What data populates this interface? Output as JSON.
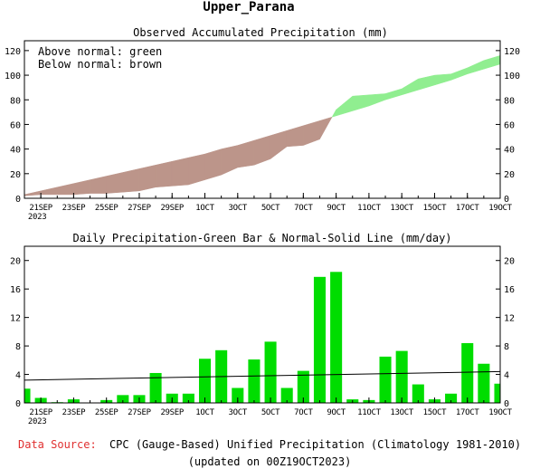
{
  "title": "Upper_Parana",
  "footer": {
    "source_label": "Data Source:",
    "source_text": "CPC (Gauge-Based) Unified Precipitation (Climatology 1981-2010)",
    "updated": "(updated on 00Z19OCT2023)"
  },
  "colors": {
    "above_normal": "#90ee90",
    "below_normal": "#bc958a",
    "bar": "#00dd00",
    "axis": "#000000",
    "source_label": "#e03030"
  },
  "chart_data": [
    {
      "type": "area",
      "title": "Observed Accumulated Precipitation (mm)",
      "legend_text": [
        "Above normal: green",
        "Below normal: brown"
      ],
      "legend_placement": "top-left",
      "ylim": [
        0,
        128
      ],
      "yticks": [
        0,
        20,
        40,
        60,
        80,
        100,
        120
      ],
      "xticks": [
        {
          "day": 1,
          "label": "21SEP",
          "sub": "2023"
        },
        {
          "day": 3,
          "label": "23SEP"
        },
        {
          "day": 5,
          "label": "25SEP"
        },
        {
          "day": 7,
          "label": "27SEP"
        },
        {
          "day": 9,
          "label": "29SEP"
        },
        {
          "day": 11,
          "label": "1OCT"
        },
        {
          "day": 13,
          "label": "3OCT"
        },
        {
          "day": 15,
          "label": "5OCT"
        },
        {
          "day": 17,
          "label": "7OCT"
        },
        {
          "day": 19,
          "label": "9OCT"
        },
        {
          "day": 21,
          "label": "11OCT"
        },
        {
          "day": 23,
          "label": "13OCT"
        },
        {
          "day": 25,
          "label": "15OCT"
        },
        {
          "day": 27,
          "label": "17OCT"
        },
        {
          "day": 29,
          "label": "19OCT"
        }
      ],
      "x_days": [
        0,
        1,
        2,
        3,
        4,
        5,
        6,
        7,
        8,
        9,
        10,
        11,
        12,
        13,
        14,
        15,
        16,
        17,
        18,
        19,
        20,
        21,
        22,
        23,
        24,
        25,
        26,
        27,
        28,
        29
      ],
      "series": [
        {
          "name": "Observed",
          "values": [
            2,
            3,
            3,
            3,
            4,
            4,
            5,
            6,
            9,
            10,
            11,
            15,
            19,
            25,
            27,
            32,
            42,
            43,
            48,
            72,
            83,
            84,
            85,
            89,
            97,
            100,
            101,
            106,
            112,
            116
          ]
        },
        {
          "name": "Normal",
          "values": [
            3,
            6,
            9,
            12,
            15,
            18,
            21,
            24,
            27,
            30,
            33,
            36,
            40,
            43,
            47,
            51,
            55,
            59,
            63,
            67,
            71,
            75,
            80,
            84,
            88,
            92,
            96,
            101,
            105,
            109
          ]
        }
      ]
    },
    {
      "type": "bar",
      "title": "Daily Precipitation-Green Bar & Normal-Solid Line (mm/day)",
      "ylim": [
        0,
        22
      ],
      "yticks": [
        0,
        4,
        8,
        12,
        16,
        20
      ],
      "x_days": [
        0,
        1,
        2,
        3,
        4,
        5,
        6,
        7,
        8,
        9,
        10,
        11,
        12,
        13,
        14,
        15,
        16,
        17,
        18,
        19,
        20,
        21,
        22,
        23,
        24,
        25,
        26,
        27,
        28,
        29
      ],
      "values": [
        2.0,
        0.7,
        0.1,
        0.5,
        0,
        0.4,
        1.1,
        1.1,
        4.2,
        1.3,
        1.3,
        6.2,
        7.4,
        2.1,
        6.1,
        8.6,
        2.1,
        4.5,
        17.7,
        18.4,
        0.5,
        0.4,
        6.5,
        7.3,
        2.6,
        0.5,
        1.3,
        8.4,
        5.5,
        2.7
      ],
      "normal_line": [
        3.2,
        4.4
      ]
    }
  ]
}
